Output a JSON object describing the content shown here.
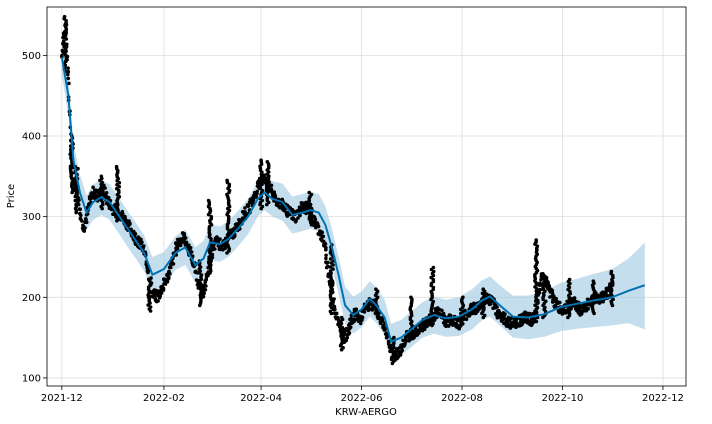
{
  "chart_data": {
    "type": "line",
    "xlabel": "KRW-AERGO",
    "ylabel": "Price",
    "xlim": [
      "2021-11-22",
      "2022-12-15"
    ],
    "ylim": [
      90,
      560
    ],
    "grid": true,
    "x_ticks": [
      "2021-12-01",
      "2022-02-01",
      "2022-04-01",
      "2022-06-01",
      "2022-08-01",
      "2022-10-01",
      "2022-12-01"
    ],
    "x_tick_labels": [
      "2021-12",
      "2022-02",
      "2022-04",
      "2022-06",
      "2022-08",
      "2022-10",
      "2022-12"
    ],
    "y_ticks": [
      100,
      200,
      300,
      400,
      500
    ],
    "y_tick_labels": [
      "100",
      "200",
      "300",
      "400",
      "500"
    ],
    "colors": {
      "forecast": "#0072B2",
      "interval": "#A6CDE5",
      "observed": "#000000",
      "grid": "#dddddd"
    },
    "forecast": {
      "x": [
        "2021-12-01",
        "2021-12-05",
        "2021-12-08",
        "2021-12-12",
        "2021-12-16",
        "2021-12-20",
        "2021-12-25",
        "2021-12-30",
        "2022-01-05",
        "2022-01-10",
        "2022-01-15",
        "2022-01-20",
        "2022-01-25",
        "2022-02-01",
        "2022-02-08",
        "2022-02-14",
        "2022-02-20",
        "2022-02-25",
        "2022-03-01",
        "2022-03-07",
        "2022-03-12",
        "2022-03-18",
        "2022-03-24",
        "2022-03-30",
        "2022-04-03",
        "2022-04-08",
        "2022-04-14",
        "2022-04-20",
        "2022-04-26",
        "2022-05-01",
        "2022-05-06",
        "2022-05-10",
        "2022-05-14",
        "2022-05-18",
        "2022-05-22",
        "2022-05-27",
        "2022-06-01",
        "2022-06-06",
        "2022-06-10",
        "2022-06-15",
        "2022-06-19",
        "2022-06-25",
        "2022-07-01",
        "2022-07-08",
        "2022-07-15",
        "2022-07-22",
        "2022-07-30",
        "2022-08-07",
        "2022-08-13",
        "2022-08-18",
        "2022-08-24",
        "2022-09-01",
        "2022-09-10",
        "2022-09-20",
        "2022-09-30",
        "2022-10-10",
        "2022-10-20",
        "2022-10-31",
        "2022-11-10",
        "2022-11-20"
      ],
      "y": [
        498,
        450,
        370,
        330,
        305,
        318,
        324,
        318,
        300,
        285,
        270,
        255,
        228,
        235,
        255,
        262,
        240,
        248,
        268,
        266,
        272,
        285,
        300,
        322,
        330,
        322,
        318,
        302,
        305,
        308,
        305,
        290,
        262,
        228,
        190,
        178,
        185,
        198,
        190,
        175,
        145,
        150,
        160,
        172,
        178,
        174,
        176,
        185,
        196,
        201,
        190,
        176,
        175,
        179,
        188,
        192,
        196,
        200,
        208,
        215
      ],
      "lower": [
        476,
        425,
        348,
        308,
        284,
        296,
        302,
        296,
        278,
        262,
        248,
        232,
        206,
        214,
        234,
        240,
        218,
        226,
        246,
        244,
        250,
        263,
        278,
        300,
        308,
        300,
        295,
        279,
        282,
        285,
        282,
        267,
        239,
        205,
        167,
        155,
        163,
        176,
        168,
        153,
        123,
        128,
        138,
        150,
        155,
        151,
        152,
        160,
        171,
        176,
        165,
        150,
        148,
        151,
        158,
        161,
        163,
        165,
        168,
        160
      ],
      "upper": [
        520,
        472,
        392,
        352,
        326,
        340,
        346,
        340,
        322,
        307,
        292,
        277,
        250,
        256,
        276,
        284,
        262,
        270,
        290,
        288,
        294,
        307,
        322,
        344,
        352,
        344,
        341,
        325,
        328,
        331,
        328,
        313,
        285,
        251,
        213,
        201,
        207,
        220,
        212,
        197,
        167,
        172,
        182,
        194,
        201,
        197,
        200,
        210,
        221,
        226,
        215,
        202,
        202,
        207,
        218,
        223,
        229,
        235,
        248,
        268
      ]
    },
    "observed_segments": [
      {
        "x": [
          "2021-12-01",
          "2021-12-02",
          "2021-12-03",
          "2021-12-04",
          "2021-12-05",
          "2021-12-06",
          "2021-12-07",
          "2021-12-08",
          "2021-12-10",
          "2021-12-12",
          "2021-12-14",
          "2021-12-16",
          "2021-12-18",
          "2021-12-20",
          "2021-12-23",
          "2021-12-26",
          "2021-12-29",
          "2022-01-01",
          "2022-01-04",
          "2022-01-07",
          "2022-01-10",
          "2022-01-13",
          "2022-01-16",
          "2022-01-19",
          "2022-01-22",
          "2022-01-25",
          "2022-01-28",
          "2022-02-01",
          "2022-02-05",
          "2022-02-09",
          "2022-02-13",
          "2022-02-17",
          "2022-02-20",
          "2022-02-23",
          "2022-02-25",
          "2022-02-27",
          "2022-03-02",
          "2022-03-05",
          "2022-03-09",
          "2022-03-13",
          "2022-03-17",
          "2022-03-21",
          "2022-03-25",
          "2022-03-28",
          "2022-04-01",
          "2022-04-04",
          "2022-04-07",
          "2022-04-10",
          "2022-04-14",
          "2022-04-18",
          "2022-04-22",
          "2022-04-26",
          "2022-04-30",
          "2022-05-03",
          "2022-05-06",
          "2022-05-09",
          "2022-05-11",
          "2022-05-13",
          "2022-05-16",
          "2022-05-19",
          "2022-05-22",
          "2022-05-25",
          "2022-05-28",
          "2022-05-31",
          "2022-06-03",
          "2022-06-06",
          "2022-06-09",
          "2022-06-12",
          "2022-06-15",
          "2022-06-18",
          "2022-06-21",
          "2022-06-24",
          "2022-06-28",
          "2022-07-02",
          "2022-07-06",
          "2022-07-10",
          "2022-07-14",
          "2022-07-18",
          "2022-07-22",
          "2022-07-26",
          "2022-07-30",
          "2022-08-03",
          "2022-08-07",
          "2022-08-11",
          "2022-08-15",
          "2022-08-19",
          "2022-08-23",
          "2022-08-27",
          "2022-08-31",
          "2022-09-04",
          "2022-09-08",
          "2022-09-12",
          "2022-09-15",
          "2022-09-18",
          "2022-09-22",
          "2022-09-26",
          "2022-09-30",
          "2022-10-04",
          "2022-10-08",
          "2022-10-12",
          "2022-10-16",
          "2022-10-20",
          "2022-10-24",
          "2022-10-28",
          "2022-11-01"
        ],
        "y": [
          500,
          520,
          535,
          510,
          470,
          420,
          370,
          345,
          335,
          310,
          285,
          300,
          320,
          330,
          325,
          335,
          320,
          310,
          305,
          300,
          290,
          280,
          270,
          262,
          240,
          205,
          200,
          215,
          235,
          265,
          275,
          255,
          235,
          210,
          205,
          225,
          255,
          270,
          262,
          275,
          285,
          300,
          312,
          325,
          345,
          348,
          332,
          320,
          315,
          305,
          300,
          312,
          310,
          295,
          285,
          270,
          245,
          215,
          185,
          160,
          150,
          165,
          180,
          172,
          185,
          192,
          190,
          175,
          165,
          140,
          128,
          132,
          150,
          155,
          160,
          168,
          175,
          185,
          170,
          172,
          168,
          178,
          185,
          188,
          200,
          195,
          180,
          172,
          168,
          170,
          175,
          172,
          175,
          230,
          215,
          195,
          185,
          188,
          195,
          182,
          190,
          200,
          198,
          205,
          215
        ]
      }
    ],
    "observed_spikes": [
      {
        "x": "2021-12-03",
        "y_low": 480,
        "y_high": 548
      },
      {
        "x": "2021-12-07",
        "y_low": 330,
        "y_high": 400
      },
      {
        "x": "2021-12-10",
        "y_low": 305,
        "y_high": 362
      },
      {
        "x": "2021-12-25",
        "y_low": 310,
        "y_high": 350
      },
      {
        "x": "2022-01-04",
        "y_low": 295,
        "y_high": 362
      },
      {
        "x": "2022-01-23",
        "y_low": 183,
        "y_high": 215
      },
      {
        "x": "2022-02-23",
        "y_low": 190,
        "y_high": 245
      },
      {
        "x": "2022-03-01",
        "y_low": 230,
        "y_high": 320
      },
      {
        "x": "2022-03-12",
        "y_low": 255,
        "y_high": 345
      },
      {
        "x": "2022-04-01",
        "y_low": 310,
        "y_high": 370
      },
      {
        "x": "2022-04-05",
        "y_low": 315,
        "y_high": 368
      },
      {
        "x": "2022-05-01",
        "y_low": 290,
        "y_high": 330
      },
      {
        "x": "2022-05-14",
        "y_low": 180,
        "y_high": 265
      },
      {
        "x": "2022-05-20",
        "y_low": 135,
        "y_high": 175
      },
      {
        "x": "2022-06-10",
        "y_low": 180,
        "y_high": 210
      },
      {
        "x": "2022-06-20",
        "y_low": 118,
        "y_high": 150
      },
      {
        "x": "2022-07-01",
        "y_low": 150,
        "y_high": 200
      },
      {
        "x": "2022-07-14",
        "y_low": 165,
        "y_high": 237
      },
      {
        "x": "2022-08-01",
        "y_low": 165,
        "y_high": 200
      },
      {
        "x": "2022-08-14",
        "y_low": 175,
        "y_high": 210
      },
      {
        "x": "2022-09-15",
        "y_low": 170,
        "y_high": 271
      },
      {
        "x": "2022-09-20",
        "y_low": 175,
        "y_high": 225
      },
      {
        "x": "2022-10-05",
        "y_low": 175,
        "y_high": 222
      },
      {
        "x": "2022-10-20",
        "y_low": 180,
        "y_high": 220
      },
      {
        "x": "2022-10-31",
        "y_low": 190,
        "y_high": 232
      }
    ]
  }
}
